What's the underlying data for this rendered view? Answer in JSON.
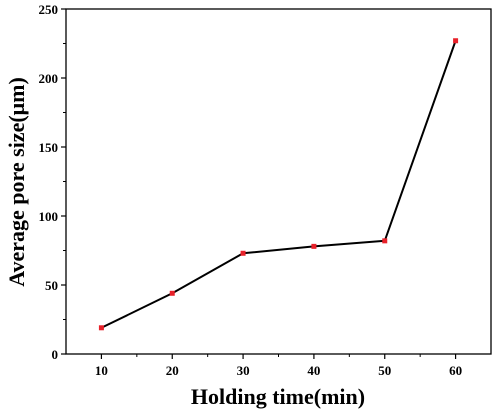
{
  "chart_data": {
    "type": "line",
    "title": "",
    "xlabel": "Holding time(min)",
    "ylabel": "Average pore size(μm)",
    "x": [
      10,
      20,
      30,
      40,
      50,
      60
    ],
    "series": [
      {
        "values": [
          19,
          44,
          73,
          78,
          82,
          227
        ]
      }
    ],
    "xlim": [
      5,
      65
    ],
    "ylim": [
      0,
      250
    ],
    "xticks": [
      10,
      20,
      30,
      40,
      50,
      60
    ],
    "yticks": [
      0,
      50,
      100,
      150,
      200,
      250
    ],
    "grid": false,
    "legend": "none",
    "line_color": "#000000",
    "marker_color": "#e8212a"
  }
}
